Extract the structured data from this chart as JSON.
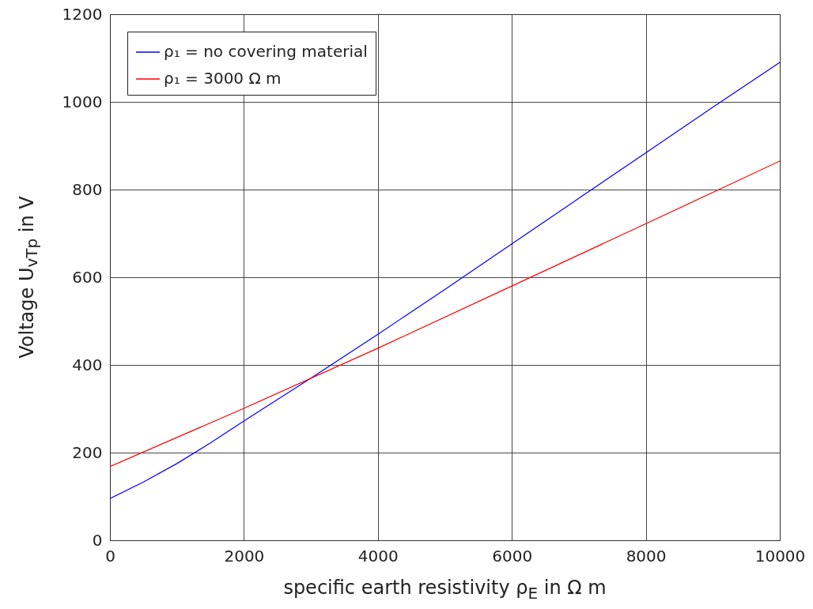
{
  "chart_data": {
    "type": "line",
    "xlabel": "specific earth resistivity ρ$_{E}$ in Ω m",
    "ylabel": "Voltage U$_{vTp}$ in V",
    "xlim": [
      0,
      10000
    ],
    "xticks": [
      0,
      2000,
      4000,
      6000,
      8000,
      10000
    ],
    "ylim": [
      0,
      1200
    ],
    "yticks": [
      0,
      200,
      400,
      600,
      800,
      1000,
      1200
    ],
    "grid": true,
    "legend": "top left",
    "series": [
      {
        "name": "ρ₁ = no covering material",
        "color": "#0000ff",
        "x": [
          0,
          500,
          1000,
          1500,
          2000,
          3000,
          4000,
          5000,
          6000,
          7000,
          8000,
          9000,
          10000
        ],
        "values": [
          95,
          133,
          175,
          222,
          272,
          370,
          470,
          572,
          676,
          780,
          884,
          988,
          1090
        ]
      },
      {
        "name": "ρ₁ = 3000 Ω m",
        "color": "#ff0000",
        "x": [
          0,
          2000,
          4000,
          6000,
          8000,
          10000
        ],
        "values": [
          168,
          301,
          438,
          580,
          722,
          865
        ]
      }
    ]
  }
}
